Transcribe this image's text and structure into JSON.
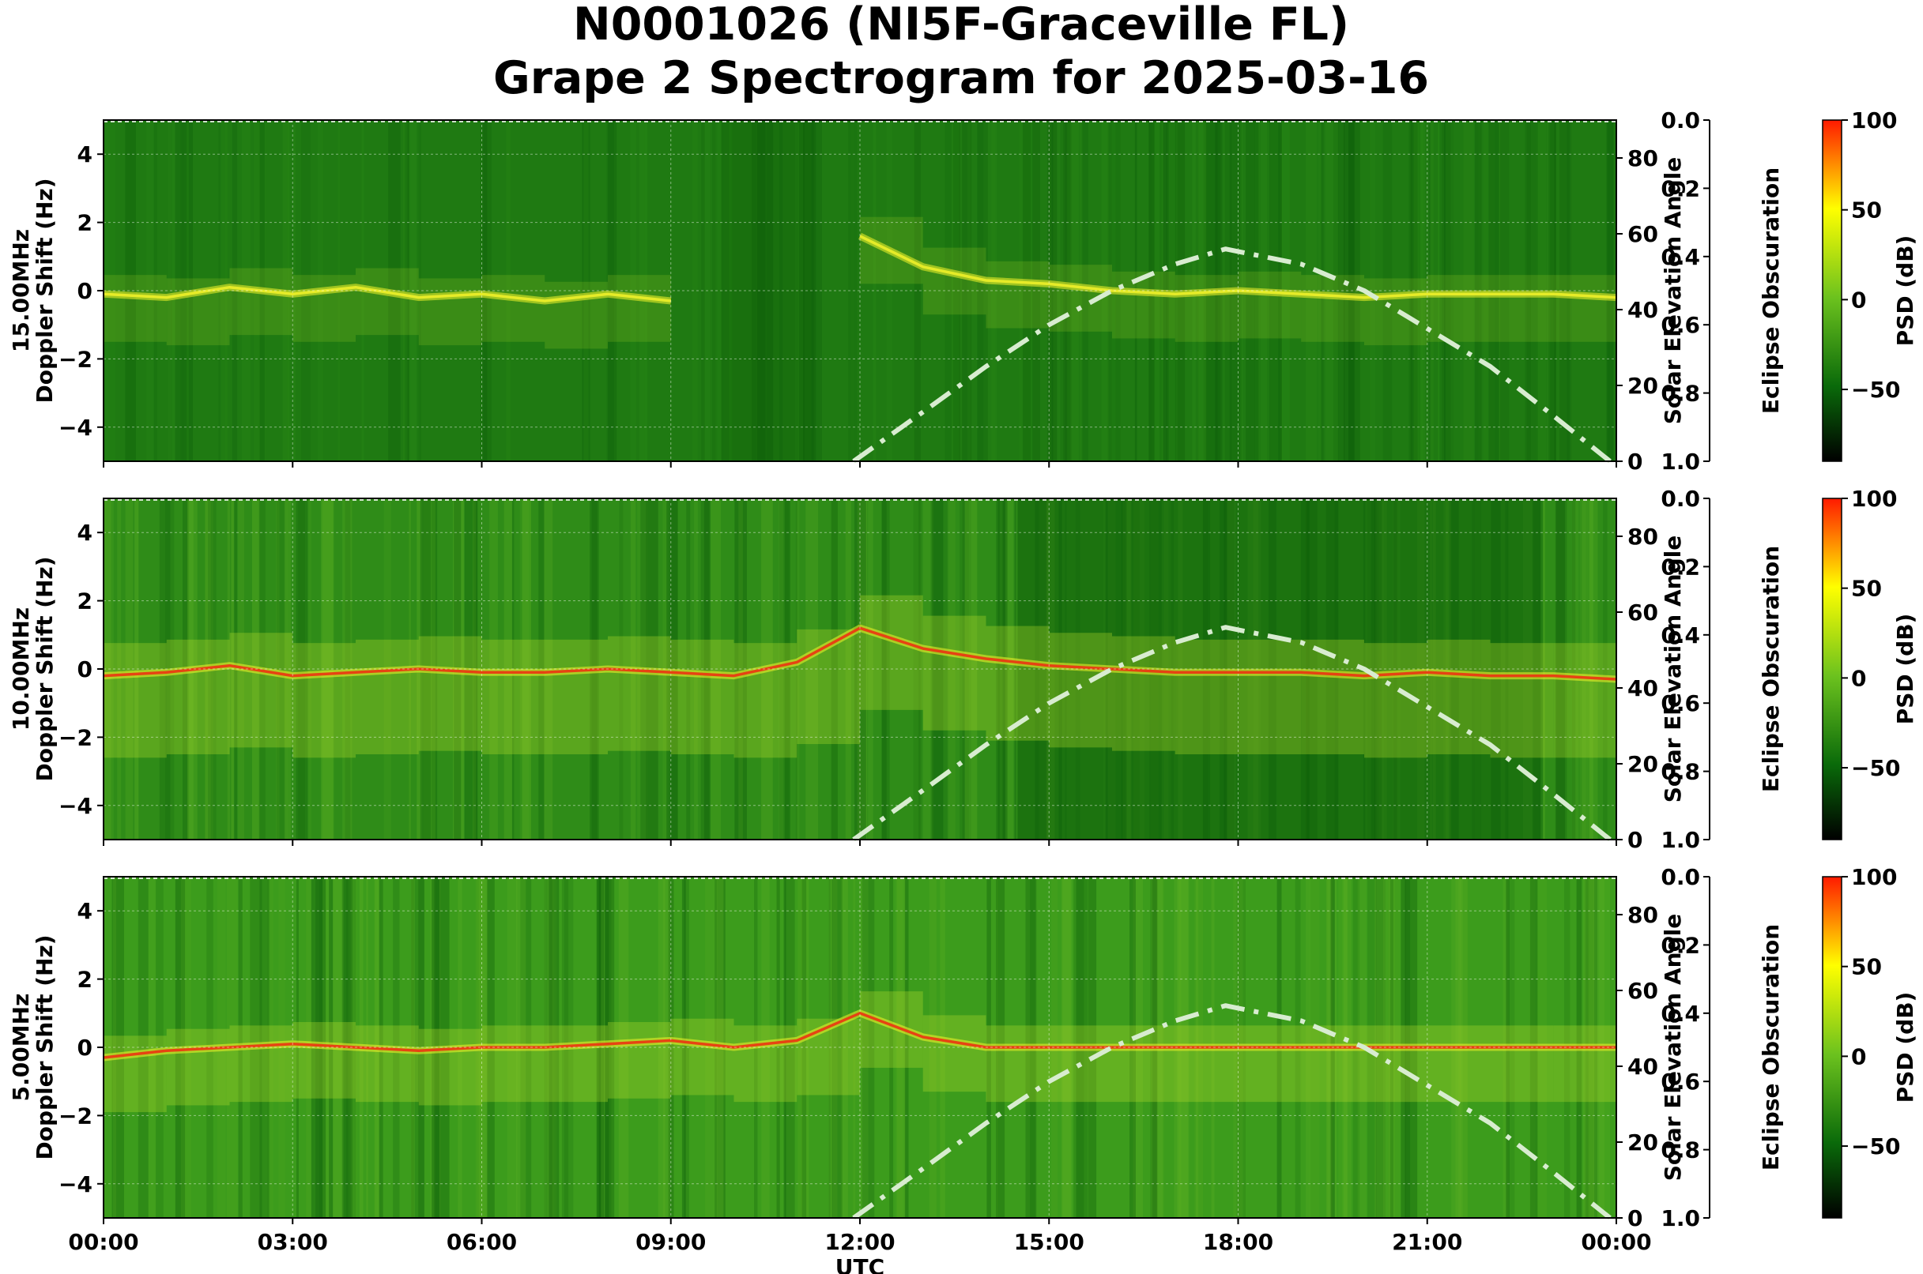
{
  "title_line1": "N0001026 (NI5F-Graceville FL)",
  "title_line2": "Grape 2 Spectrogram for 2025-03-16",
  "colors": {
    "background_green": "#1f7a12",
    "dark_green": "#0d5e0a",
    "mid_green": "#3c9c1c",
    "yellow_green": "#b8dc2a",
    "yellow": "#f2f22a",
    "red": "#f02a10",
    "solar_curve": "#d8ecd0"
  },
  "chart_data": [
    {
      "type": "heatmap",
      "band_label": "15.00MHz",
      "ylabel": "Doppler Shift (Hz)",
      "xlabel": "",
      "ylim": [
        -5,
        5
      ],
      "yticks": [
        4,
        2,
        0,
        -2,
        -4
      ],
      "xticks": [
        "00:00",
        "03:00",
        "06:00",
        "09:00",
        "12:00",
        "15:00",
        "18:00",
        "21:00",
        "00:00"
      ],
      "right_axis": {
        "label": "Solar Elevation Angle",
        "range": [
          0,
          90
        ],
        "ticks": [
          0,
          20,
          40,
          60,
          80
        ]
      },
      "eclipse_axis": {
        "label": "Eclipse Obscuration",
        "range": [
          0.0,
          1.0
        ],
        "ticks": [
          "0.0",
          "0.2",
          "0.4",
          "0.6",
          "0.8",
          "1.0"
        ]
      },
      "colorbar": {
        "label": "PSD (dB)",
        "range": [
          -90,
          100
        ],
        "ticks": [
          "100",
          "50",
          "0",
          "−50"
        ]
      },
      "trace_utc_hours": [
        0,
        1,
        2,
        3,
        4,
        5,
        6,
        7,
        8,
        9,
        10,
        11.5,
        12,
        13,
        14,
        15,
        16,
        17,
        18,
        19,
        20,
        21,
        22,
        23,
        24
      ],
      "trace_doppler_hz": [
        -0.1,
        -0.2,
        0.1,
        -0.1,
        0.1,
        -0.2,
        -0.1,
        -0.3,
        -0.1,
        -0.3,
        null,
        null,
        1.6,
        0.7,
        0.3,
        0.2,
        0.0,
        -0.1,
        0.0,
        -0.1,
        -0.2,
        -0.1,
        -0.1,
        -0.1,
        -0.2
      ],
      "solar_elevation_utc_hours": [
        11.9,
        13,
        14,
        15,
        16,
        17,
        17.8,
        19,
        20,
        21,
        22,
        23,
        23.9
      ],
      "solar_elevation_deg": [
        0,
        13,
        25,
        36,
        45,
        52,
        56,
        52,
        45,
        35,
        25,
        12,
        0
      ]
    },
    {
      "type": "heatmap",
      "band_label": "10.00MHz",
      "ylabel": "Doppler Shift (Hz)",
      "xlabel": "",
      "ylim": [
        -5,
        5
      ],
      "yticks": [
        4,
        2,
        0,
        -2,
        -4
      ],
      "xticks": [
        "00:00",
        "03:00",
        "06:00",
        "09:00",
        "12:00",
        "15:00",
        "18:00",
        "21:00",
        "00:00"
      ],
      "right_axis": {
        "label": "Solar Elevation Angle",
        "range": [
          0,
          90
        ],
        "ticks": [
          0,
          20,
          40,
          60,
          80
        ]
      },
      "eclipse_axis": {
        "label": "Eclipse Obscuration",
        "range": [
          0.0,
          1.0
        ],
        "ticks": [
          "0.0",
          "0.2",
          "0.4",
          "0.6",
          "0.8",
          "1.0"
        ]
      },
      "colorbar": {
        "label": "PSD (dB)",
        "range": [
          -90,
          100
        ],
        "ticks": [
          "100",
          "50",
          "0",
          "−50"
        ]
      },
      "trace_utc_hours": [
        0,
        1,
        2,
        3,
        4,
        5,
        6,
        7,
        8,
        9,
        10,
        11,
        12,
        13,
        14,
        15,
        16,
        17,
        18,
        19,
        20,
        21,
        22,
        23,
        24
      ],
      "trace_doppler_hz": [
        -0.2,
        -0.1,
        0.1,
        -0.2,
        -0.1,
        0.0,
        -0.1,
        -0.1,
        0.0,
        -0.1,
        -0.2,
        0.2,
        1.2,
        0.6,
        0.3,
        0.1,
        0.0,
        -0.1,
        -0.1,
        -0.1,
        -0.2,
        -0.1,
        -0.2,
        -0.2,
        -0.3
      ],
      "solar_elevation_utc_hours": [
        11.9,
        13,
        14,
        15,
        16,
        17,
        17.8,
        19,
        20,
        21,
        22,
        23,
        23.9
      ],
      "solar_elevation_deg": [
        0,
        13,
        25,
        36,
        45,
        52,
        56,
        52,
        45,
        35,
        25,
        12,
        0
      ]
    },
    {
      "type": "heatmap",
      "band_label": "5.00MHz",
      "ylabel": "Doppler Shift (Hz)",
      "xlabel": "UTC",
      "ylim": [
        -5,
        5
      ],
      "yticks": [
        4,
        2,
        0,
        -2,
        -4
      ],
      "xticks": [
        "00:00",
        "03:00",
        "06:00",
        "09:00",
        "12:00",
        "15:00",
        "18:00",
        "21:00",
        "00:00"
      ],
      "right_axis": {
        "label": "Solar Elevation Angle",
        "range": [
          0,
          90
        ],
        "ticks": [
          0,
          20,
          40,
          60,
          80
        ]
      },
      "eclipse_axis": {
        "label": "Eclipse Obscuration",
        "range": [
          0.0,
          1.0
        ],
        "ticks": [
          "0.0",
          "0.2",
          "0.4",
          "0.6",
          "0.8",
          "1.0"
        ]
      },
      "colorbar": {
        "label": "PSD (dB)",
        "range": [
          -90,
          100
        ],
        "ticks": [
          "100",
          "50",
          "0",
          "−50"
        ]
      },
      "trace_utc_hours": [
        0,
        1,
        2,
        3,
        4,
        5,
        6,
        7,
        8,
        9,
        10,
        11,
        12,
        13,
        14,
        15,
        16,
        17,
        18,
        19,
        20,
        21,
        22,
        23,
        24
      ],
      "trace_doppler_hz": [
        -0.3,
        -0.1,
        0.0,
        0.1,
        0.0,
        -0.1,
        0.0,
        0.0,
        0.1,
        0.2,
        0.0,
        0.2,
        1.0,
        0.3,
        0.0,
        0.0,
        0.0,
        0.0,
        0.0,
        0.0,
        0.0,
        0.0,
        0.0,
        0.0,
        0.0
      ],
      "solar_elevation_utc_hours": [
        11.9,
        13,
        14,
        15,
        16,
        17,
        17.8,
        19,
        20,
        21,
        22,
        23,
        23.9
      ],
      "solar_elevation_deg": [
        0,
        13,
        25,
        36,
        45,
        52,
        56,
        52,
        45,
        35,
        25,
        12,
        0
      ]
    }
  ]
}
